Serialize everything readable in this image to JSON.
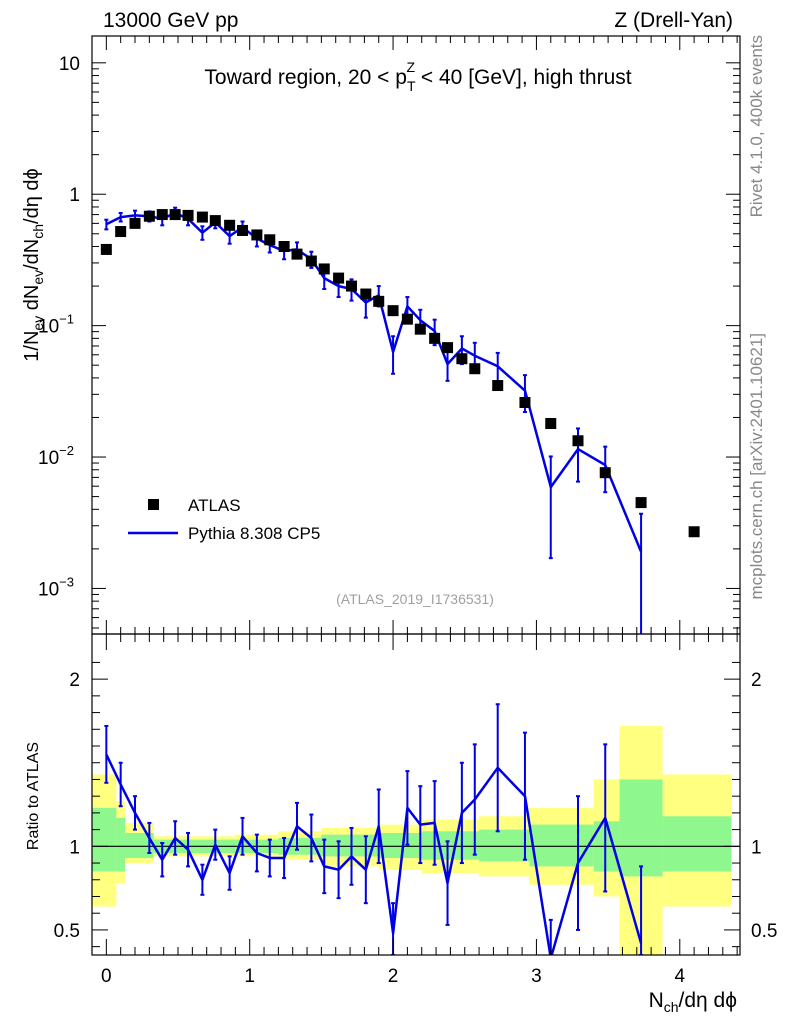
{
  "header": {
    "left": "13000 GeV pp",
    "right": "Z (Drell-Yan)"
  },
  "side_labels": {
    "rivet": "Rivet 4.1.0,  400k events",
    "source": "mcplots.cern.ch [arXiv:2401.10621]"
  },
  "colors": {
    "data": "#000000",
    "mc": "#0000e6",
    "band_outer": "#ffff80",
    "band_inner": "#8ef78e"
  },
  "chart_data": [
    {
      "type": "scatter",
      "title": "Toward region, 20 < pTZ < 40 [GeV], high thrust",
      "title_parts": {
        "pre": "Toward region, 20 < p",
        "sup": "Z",
        "sub": "T",
        "post": " < 40 [GeV], high thrust"
      },
      "ylabel": "1/Nev dNev/dNch/dη dϕ",
      "xlabel": "Nch/dη dϕ",
      "yscale": "log",
      "ylim": [
        0.00045,
        16
      ],
      "xlim": [
        -0.1,
        4.42
      ],
      "xticks": [
        "0",
        "1",
        "2",
        "3",
        "4"
      ],
      "yticks": [
        "10^-3",
        "10^-2",
        "10^-1",
        "1",
        "10"
      ],
      "ytick_text": {
        "m3": {
          "base": "10",
          "exp": "−3"
        },
        "m2": {
          "base": "10",
          "exp": "−2"
        },
        "m1": {
          "base": "10",
          "exp": "−1"
        },
        "p0": "1",
        "p1": "10"
      },
      "watermark": "(ATLAS_2019_I1736531)",
      "legend_position": "bottom-left",
      "legend": {
        "data": "ATLAS",
        "mc": "Pythia 8.308 CP5"
      },
      "series": [
        {
          "name": "ATLAS",
          "points": [
            [
              0.0,
              0.38
            ],
            [
              0.1,
              0.52
            ],
            [
              0.2,
              0.6
            ],
            [
              0.3,
              0.68
            ],
            [
              0.39,
              0.7
            ],
            [
              0.48,
              0.7
            ],
            [
              0.57,
              0.69
            ],
            [
              0.67,
              0.67
            ],
            [
              0.76,
              0.63
            ],
            [
              0.86,
              0.58
            ],
            [
              0.95,
              0.53
            ],
            [
              1.05,
              0.49
            ],
            [
              1.14,
              0.45
            ],
            [
              1.24,
              0.4
            ],
            [
              1.33,
              0.35
            ],
            [
              1.43,
              0.31
            ],
            [
              1.52,
              0.27
            ],
            [
              1.62,
              0.23
            ],
            [
              1.71,
              0.2
            ],
            [
              1.81,
              0.174
            ],
            [
              1.9,
              0.153
            ],
            [
              2.0,
              0.13
            ],
            [
              2.1,
              0.112
            ],
            [
              2.19,
              0.094
            ],
            [
              2.29,
              0.08
            ],
            [
              2.38,
              0.068
            ],
            [
              2.48,
              0.056
            ],
            [
              2.57,
              0.047
            ],
            [
              2.73,
              0.035
            ],
            [
              2.92,
              0.026
            ],
            [
              3.1,
              0.018
            ],
            [
              3.29,
              0.0133
            ],
            [
              3.48,
              0.0076
            ],
            [
              3.73,
              0.0045
            ],
            [
              4.1,
              0.0027
            ]
          ]
        },
        {
          "name": "Pythia 8.308 CP5",
          "points": [
            [
              0.0,
              0.59,
              0.05
            ],
            [
              0.1,
              0.67,
              0.05
            ],
            [
              0.2,
              0.69,
              0.06
            ],
            [
              0.3,
              0.68,
              0.06
            ],
            [
              0.39,
              0.65,
              0.07
            ],
            [
              0.48,
              0.72,
              0.07
            ],
            [
              0.57,
              0.65,
              0.07
            ],
            [
              0.67,
              0.51,
              0.06
            ],
            [
              0.76,
              0.61,
              0.06
            ],
            [
              0.86,
              0.48,
              0.06
            ],
            [
              0.95,
              0.56,
              0.06
            ],
            [
              1.05,
              0.46,
              0.06
            ],
            [
              1.14,
              0.41,
              0.05
            ],
            [
              1.24,
              0.37,
              0.05
            ],
            [
              1.33,
              0.38,
              0.05
            ],
            [
              1.43,
              0.32,
              0.045
            ],
            [
              1.52,
              0.23,
              0.04
            ],
            [
              1.62,
              0.2,
              0.035
            ],
            [
              1.71,
              0.19,
              0.035
            ],
            [
              1.81,
              0.15,
              0.035
            ],
            [
              1.9,
              0.17,
              0.03
            ],
            [
              2.0,
              0.063,
              0.02
            ],
            [
              2.1,
              0.14,
              0.025
            ],
            [
              2.19,
              0.11,
              0.022
            ],
            [
              2.29,
              0.091,
              0.02
            ],
            [
              2.38,
              0.051,
              0.013
            ],
            [
              2.48,
              0.067,
              0.016
            ],
            [
              2.57,
              0.059,
              0.015
            ],
            [
              2.73,
              0.049,
              0.013
            ],
            [
              2.92,
              0.032,
              0.01
            ],
            [
              3.1,
              0.0059,
              0.0042
            ],
            [
              3.29,
              0.0115,
              0.005
            ],
            [
              3.48,
              0.0087,
              0.0033
            ],
            [
              3.73,
              0.0019,
              0.0018
            ]
          ]
        }
      ]
    },
    {
      "type": "line",
      "ylabel": "Ratio to ATLAS",
      "ylim": [
        0.35,
        2.27
      ],
      "yticks": [
        "0.5",
        "1",
        "2"
      ],
      "reference": 1,
      "bands": [
        [
          -0.1,
          0.07,
          0.64,
          1.43,
          0.85,
          1.23
        ],
        [
          0.07,
          0.13,
          0.78,
          1.27,
          0.85,
          1.17
        ],
        [
          0.13,
          0.33,
          0.9,
          1.14,
          0.93,
          1.08
        ],
        [
          0.33,
          0.9,
          0.94,
          1.06,
          0.96,
          1.04
        ],
        [
          0.9,
          1.2,
          0.94,
          1.07,
          0.96,
          1.04
        ],
        [
          1.2,
          1.5,
          0.92,
          1.09,
          0.95,
          1.05
        ],
        [
          1.5,
          1.9,
          0.88,
          1.11,
          0.94,
          1.07
        ],
        [
          1.9,
          2.2,
          0.86,
          1.13,
          0.93,
          1.08
        ],
        [
          2.2,
          2.6,
          0.84,
          1.16,
          0.92,
          1.09
        ],
        [
          2.6,
          2.95,
          0.82,
          1.18,
          0.91,
          1.1
        ],
        [
          2.95,
          3.4,
          0.77,
          1.23,
          0.88,
          1.13
        ],
        [
          3.4,
          3.58,
          0.7,
          1.4,
          0.85,
          1.15
        ],
        [
          3.58,
          3.88,
          0.35,
          1.72,
          0.82,
          1.4
        ],
        [
          3.88,
          4.36,
          0.64,
          1.43,
          0.85,
          1.18
        ]
      ],
      "series": [
        {
          "name": "Pythia 8.308 CP5 / ATLAS",
          "points": [
            [
              0.0,
              1.55,
              0.17
            ],
            [
              0.1,
              1.37,
              0.13
            ],
            [
              0.2,
              1.2,
              0.1
            ],
            [
              0.3,
              1.05,
              0.09
            ],
            [
              0.39,
              0.92,
              0.1
            ],
            [
              0.48,
              1.05,
              0.1
            ],
            [
              0.57,
              0.98,
              0.1
            ],
            [
              0.67,
              0.8,
              0.09
            ],
            [
              0.76,
              1.01,
              0.09
            ],
            [
              0.86,
              0.84,
              0.1
            ],
            [
              0.95,
              1.06,
              0.11
            ],
            [
              1.05,
              0.96,
              0.11
            ],
            [
              1.14,
              0.93,
              0.11
            ],
            [
              1.24,
              0.93,
              0.12
            ],
            [
              1.33,
              1.12,
              0.14
            ],
            [
              1.43,
              1.05,
              0.14
            ],
            [
              1.52,
              0.88,
              0.16
            ],
            [
              1.62,
              0.86,
              0.17
            ],
            [
              1.71,
              0.94,
              0.17
            ],
            [
              1.81,
              0.86,
              0.2
            ],
            [
              1.9,
              1.12,
              0.22
            ],
            [
              2.0,
              0.48,
              0.18
            ],
            [
              2.1,
              1.23,
              0.22
            ],
            [
              2.19,
              1.13,
              0.23
            ],
            [
              2.29,
              1.14,
              0.25
            ],
            [
              2.38,
              0.78,
              0.25
            ],
            [
              2.48,
              1.2,
              0.3
            ],
            [
              2.57,
              1.28,
              0.33
            ],
            [
              2.73,
              1.47,
              0.38
            ],
            [
              2.92,
              1.3,
              0.38
            ],
            [
              3.1,
              0.33,
              0.23
            ],
            [
              3.29,
              0.9,
              0.4
            ],
            [
              3.48,
              1.17,
              0.44
            ],
            [
              3.73,
              0.42,
              0.46
            ]
          ]
        }
      ]
    }
  ]
}
